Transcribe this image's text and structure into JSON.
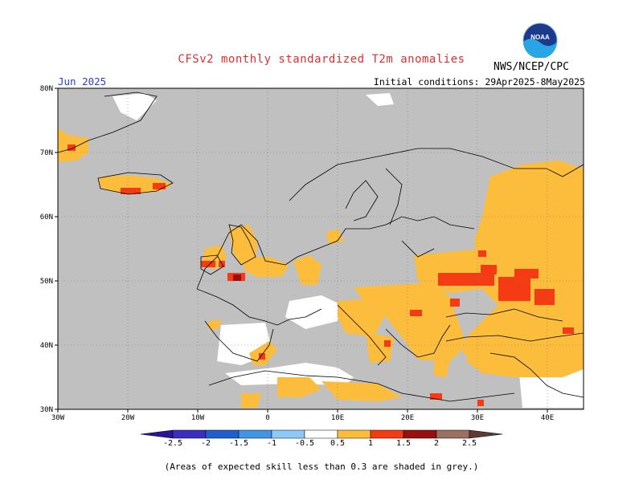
{
  "header": {
    "title": "CFSv2 monthly standardized T2m anomalies",
    "agency": "NWS/NCEP/CPC",
    "valid_month": "Jun 2025",
    "initial_conditions": "Initial conditions: 29Apr2025-8May2025",
    "logo_text": "NOAA"
  },
  "colors": {
    "title": "#e03030",
    "valid_month": "#2b3fcf",
    "grey_low_skill": "#c0c0c0",
    "neutral": "#ffffff",
    "warm_05": "#fcbd3c",
    "warm_1": "#f53b13",
    "warm_15": "#990f0f",
    "warm_2": "#9b6f62",
    "warm_25": "#5e3b31",
    "cool_05": "#8ec9f5",
    "cool_1": "#4195e7",
    "cool_15": "#1f5fcd",
    "cool_2": "#3a2ec0",
    "cool_25": "#2a1498"
  },
  "axes": {
    "lat_labels": [
      "80N",
      "70N",
      "60N",
      "50N",
      "40N",
      "30N"
    ],
    "lon_labels": [
      "30W",
      "20W",
      "10W",
      "0",
      "10E",
      "20E",
      "30E",
      "40E"
    ]
  },
  "colorbar": {
    "labels": [
      "-2.5",
      "-2",
      "-1.5",
      "-1",
      "-0.5",
      "0.5",
      "1",
      "1.5",
      "2",
      "2.5"
    ]
  },
  "footnote": "(Areas of expected skill less than 0.3 are shaded in grey.)"
}
